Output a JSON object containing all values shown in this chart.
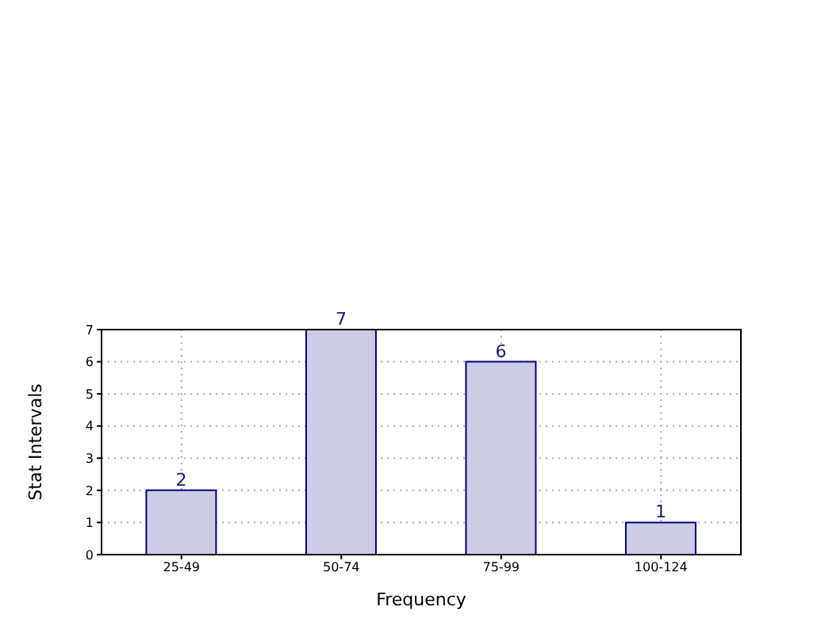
{
  "chart_data": {
    "type": "bar",
    "xlabel": "Frequency",
    "ylabel": "Stat Intervals",
    "categories": [
      "25-49",
      "50-74",
      "75-99",
      "100-124"
    ],
    "values": [
      2,
      7,
      6,
      1
    ],
    "color": "#ccccE5",
    "ylim": [
      0,
      7
    ],
    "yticks": [
      0,
      1,
      2,
      3,
      4,
      5,
      6,
      7
    ],
    "grid": true,
    "data_labels": true
  }
}
